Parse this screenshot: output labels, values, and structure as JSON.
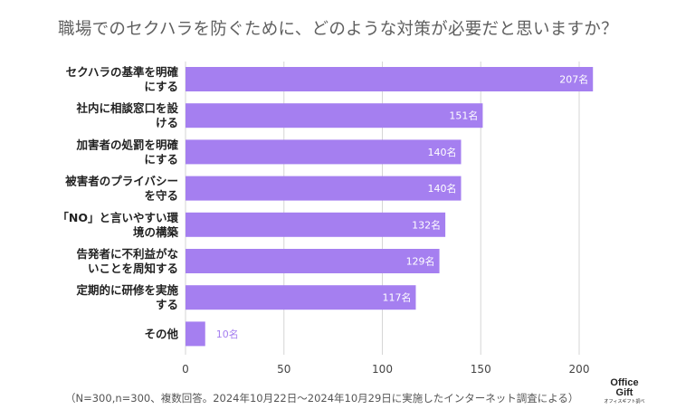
{
  "chart_data": {
    "type": "bar",
    "orientation": "horizontal",
    "title": "職場でのセクハラを防ぐために、どのような対策が必要だと思いますか？",
    "categories": [
      [
        "セクハラの基準を明確",
        "にする"
      ],
      [
        "社内に相談窓口を設",
        "ける"
      ],
      [
        "加害者の処罰を明確",
        "にする"
      ],
      [
        "被害者のプライバシー",
        "を守る"
      ],
      [
        "「NO」と言いやすい環",
        "境の構築"
      ],
      [
        "告発者に不利益がな",
        "いことを周知する"
      ],
      [
        "定期的に研修を実施",
        "する"
      ],
      [
        "その他"
      ]
    ],
    "values": [
      207,
      151,
      140,
      140,
      132,
      129,
      117,
      10
    ],
    "value_labels": [
      "207名",
      "151名",
      "140名",
      "140名",
      "132名",
      "129名",
      "117名",
      "10名"
    ],
    "xlim": [
      0,
      200
    ],
    "xticks": [
      0,
      50,
      100,
      150,
      200
    ],
    "xtick_labels": [
      "0",
      "50",
      "100",
      "150",
      "200"
    ],
    "grid": true,
    "bar_color": "#a57ff0",
    "label_color_inside": "#ffffff",
    "label_color_outside": "#a57ff0"
  },
  "footnote": "（N=300,n=300、複数回答。2024年10月22日〜2024年10月29日に実施したインターネット調査による）",
  "logo": {
    "line1": "Office",
    "line2": "Gift",
    "line3": "オフィスギフト調べ"
  }
}
